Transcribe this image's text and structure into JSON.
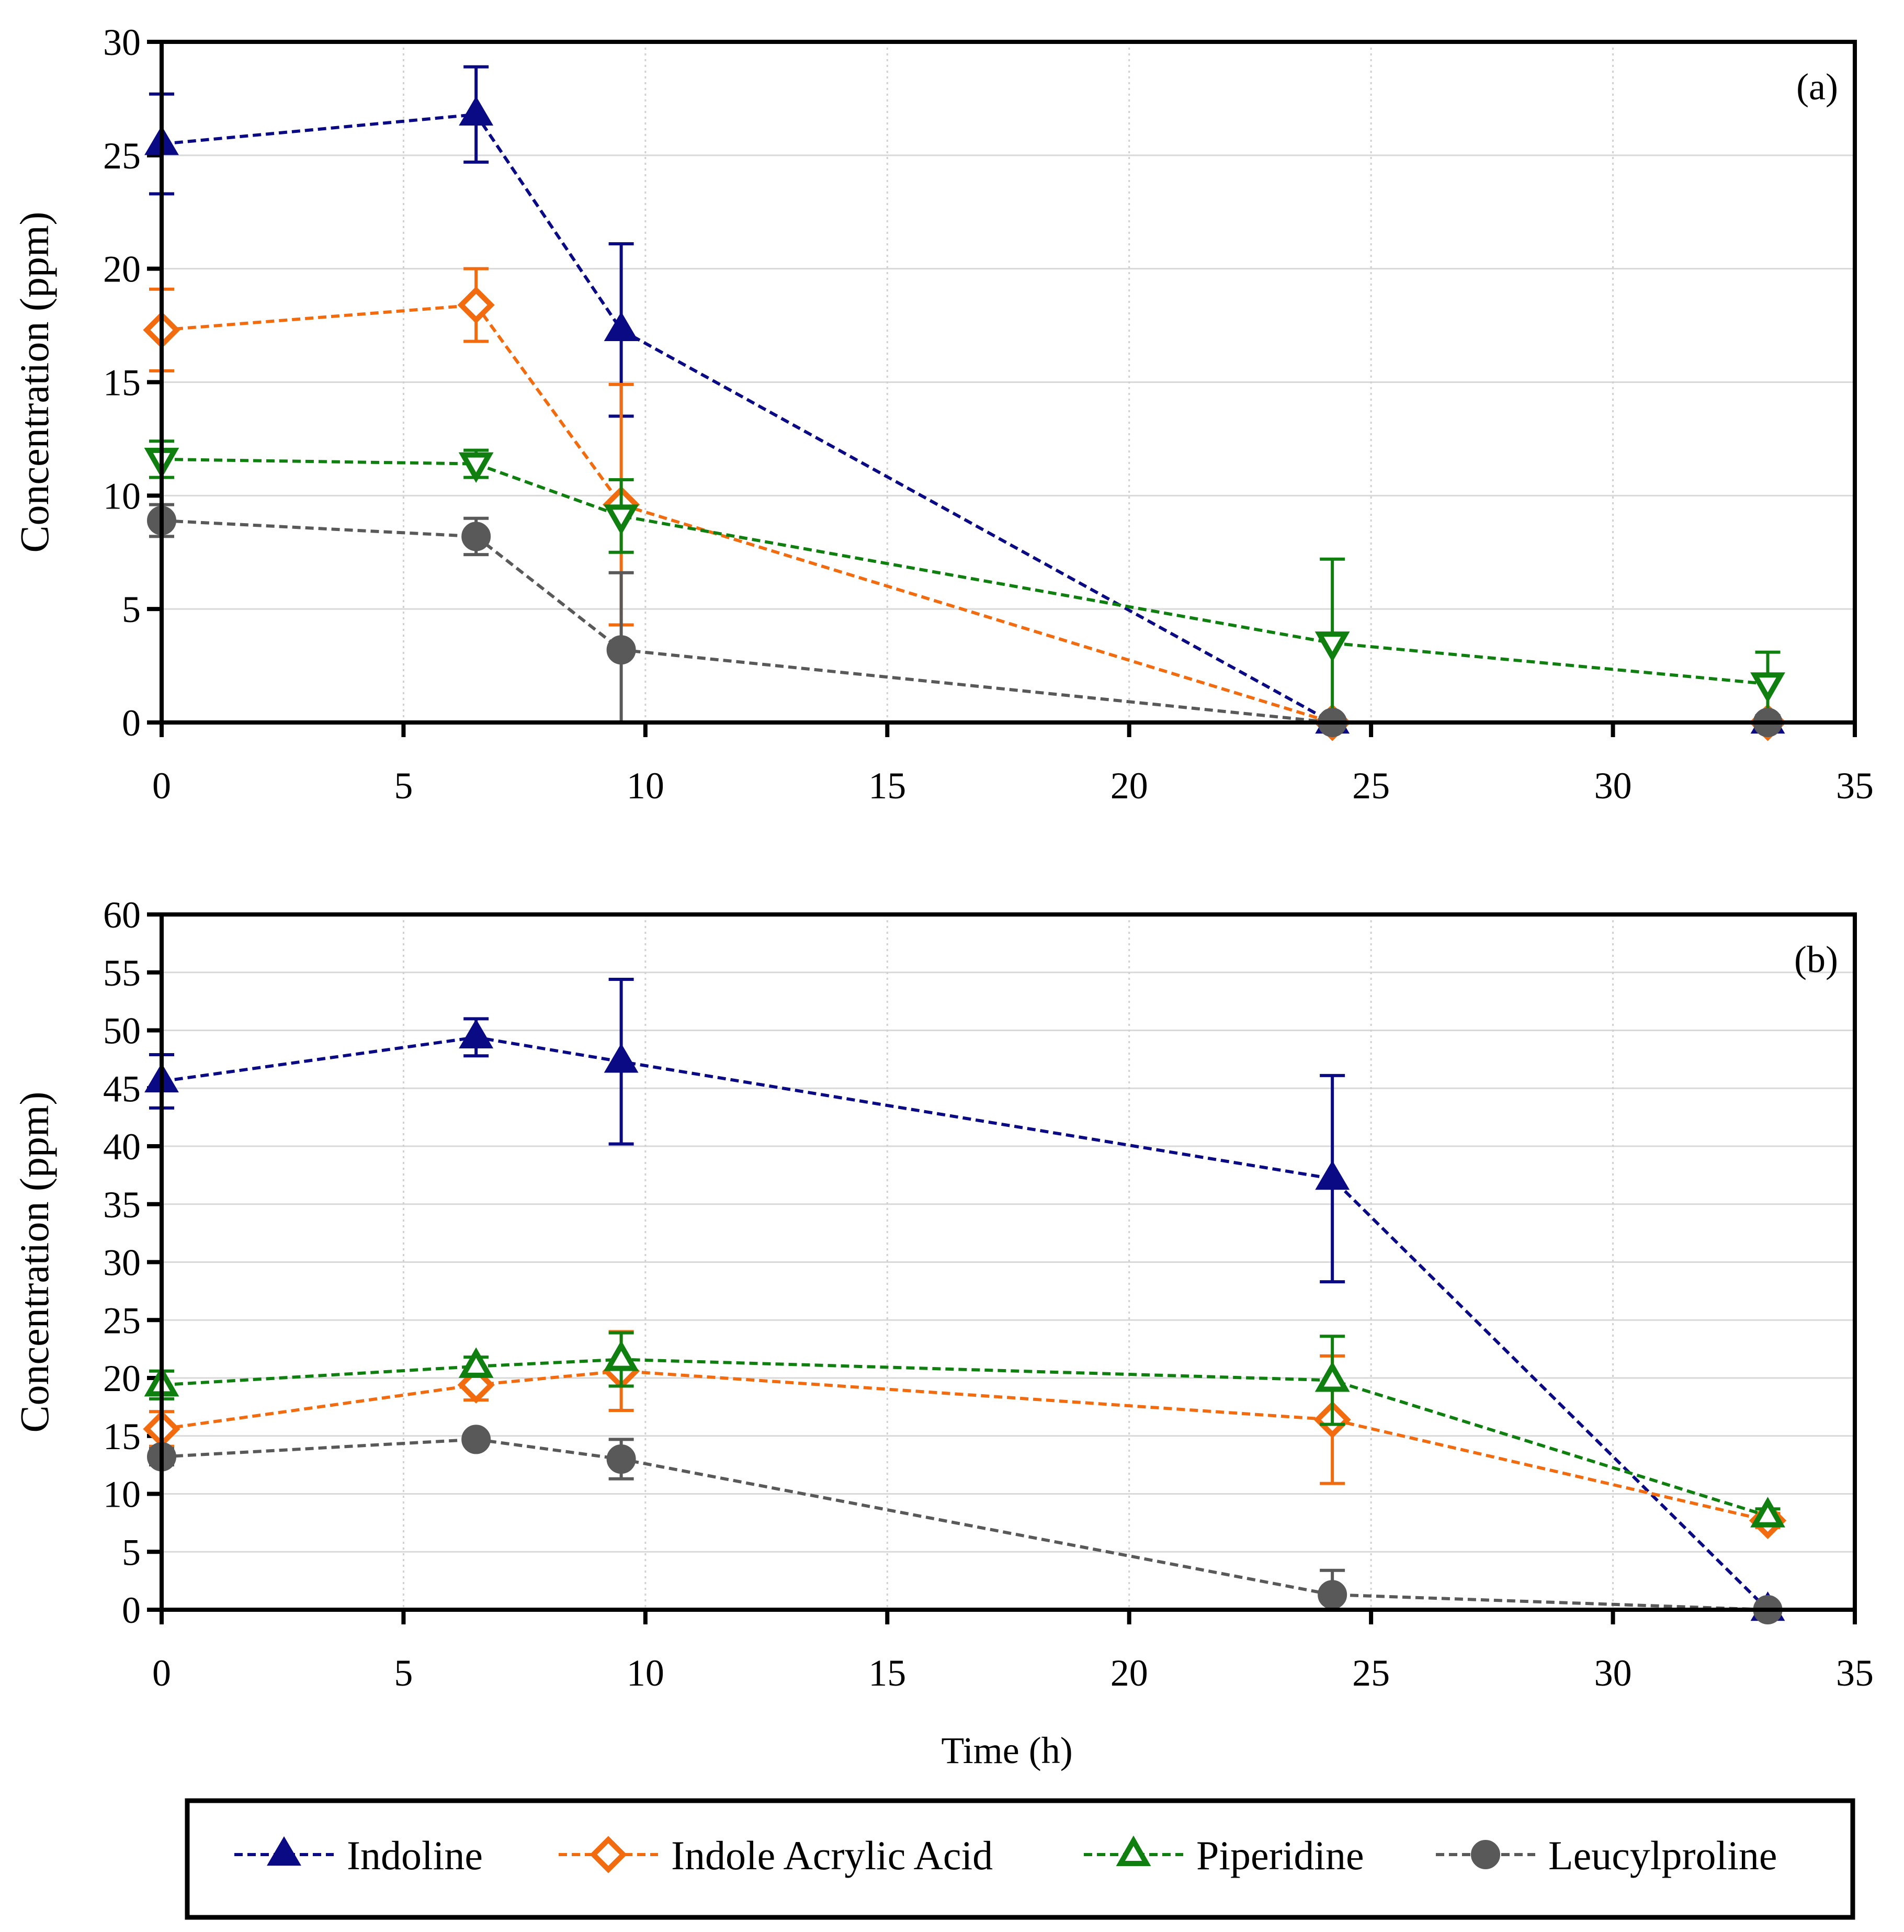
{
  "chart_data": [
    {
      "type": "line",
      "panel_label": "(a)",
      "ylabel": "Concentration (ppm)",
      "xlabel": "",
      "xlim": [
        0,
        35
      ],
      "ylim": [
        0,
        30
      ],
      "x_ticks": [
        0,
        5,
        10,
        15,
        20,
        25,
        30,
        35
      ],
      "y_ticks": [
        0,
        5,
        10,
        15,
        20,
        25,
        30
      ],
      "grid": true,
      "series": [
        {
          "name": "Indoline",
          "color": "#0a0a85",
          "marker": "triangle-up-filled",
          "x": [
            0,
            6.5,
            9.5,
            24.2,
            33.2
          ],
          "y": [
            25.5,
            26.8,
            17.3,
            0,
            0
          ],
          "err": [
            2.2,
            2.1,
            3.8,
            0,
            0
          ]
        },
        {
          "name": "Indole Acrylic Acid",
          "color": "#f26b0f",
          "marker": "diamond-open",
          "x": [
            0,
            6.5,
            9.5,
            24.2,
            33.2
          ],
          "y": [
            17.3,
            18.4,
            9.6,
            0,
            0
          ],
          "err": [
            1.8,
            1.6,
            5.3,
            0,
            0
          ]
        },
        {
          "name": "Piperidine",
          "color": "#0f7f0f",
          "marker": "triangle-down-open",
          "x": [
            0,
            6.5,
            9.5,
            24.2,
            33.2
          ],
          "y": [
            11.6,
            11.4,
            9.1,
            3.5,
            1.7
          ],
          "err": [
            0.8,
            0.6,
            1.6,
            3.7,
            1.4
          ]
        },
        {
          "name": "Leucylproline",
          "color": "#595959",
          "marker": "circle-filled",
          "x": [
            0,
            6.5,
            9.5,
            24.2,
            33.2
          ],
          "y": [
            8.9,
            8.2,
            3.2,
            0,
            0
          ],
          "err": [
            0.7,
            0.8,
            3.4,
            0,
            0
          ]
        }
      ]
    },
    {
      "type": "line",
      "panel_label": "(b)",
      "ylabel": "Concentration (ppm)",
      "xlabel": "Time (h)",
      "xlim": [
        0,
        35
      ],
      "ylim": [
        0,
        60
      ],
      "x_ticks": [
        0,
        5,
        10,
        15,
        20,
        25,
        30,
        35
      ],
      "y_ticks": [
        0,
        5,
        10,
        15,
        20,
        25,
        30,
        35,
        40,
        45,
        50,
        55,
        60
      ],
      "grid": true,
      "series": [
        {
          "name": "Indoline",
          "color": "#0a0a85",
          "marker": "triangle-up-filled",
          "x": [
            0,
            6.5,
            9.5,
            24.2,
            33.2
          ],
          "y": [
            45.6,
            49.4,
            47.3,
            37.2,
            0
          ],
          "err": [
            2.3,
            1.6,
            7.1,
            8.9,
            0
          ]
        },
        {
          "name": "Indole Acrylic Acid",
          "color": "#f26b0f",
          "marker": "diamond-open",
          "x": [
            0,
            6.5,
            9.5,
            24.2,
            33.2
          ],
          "y": [
            15.6,
            19.4,
            20.6,
            16.4,
            7.7
          ],
          "err": [
            1.5,
            1.3,
            3.4,
            5.5,
            0.6
          ]
        },
        {
          "name": "Piperidine",
          "color": "#0f7f0f",
          "marker": "triangle-up-open",
          "x": [
            0,
            6.5,
            9.5,
            24.2,
            33.2
          ],
          "y": [
            19.4,
            21.0,
            21.6,
            19.8,
            8.1
          ],
          "err": [
            1.2,
            0.8,
            2.3,
            3.8,
            0.6
          ]
        },
        {
          "name": "Leucylproline",
          "color": "#595959",
          "marker": "circle-filled",
          "x": [
            0,
            6.5,
            9.5,
            24.2,
            33.2
          ],
          "y": [
            13.2,
            14.7,
            13.0,
            1.3,
            0
          ],
          "err": [
            0.7,
            0.4,
            1.7,
            2.1,
            0
          ]
        }
      ]
    }
  ],
  "legend": {
    "position": "bottom",
    "entries": [
      {
        "label": "Indoline",
        "color": "#0a0a85",
        "marker": "triangle-up-filled"
      },
      {
        "label": "Indole Acrylic Acid",
        "color": "#f26b0f",
        "marker": "diamond-open"
      },
      {
        "label": "Piperidine",
        "color": "#0f7f0f",
        "marker": "triangle-up-open"
      },
      {
        "label": "Leucylproline",
        "color": "#595959",
        "marker": "circle-filled"
      }
    ]
  }
}
